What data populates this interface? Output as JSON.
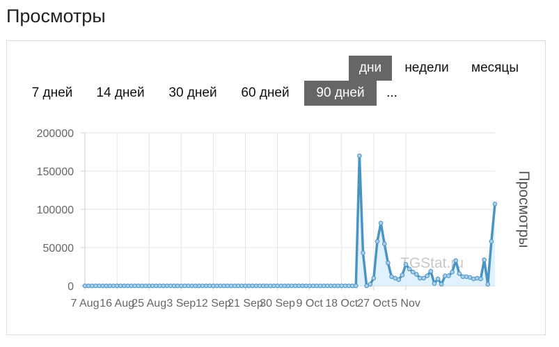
{
  "page": {
    "title": "Просмотры"
  },
  "granularity": [
    {
      "label": "дни",
      "active": true
    },
    {
      "label": "недели",
      "active": false
    },
    {
      "label": "месяцы",
      "active": false
    }
  ],
  "ranges": [
    {
      "label": "7 дней",
      "active": false
    },
    {
      "label": "14 дней",
      "active": false
    },
    {
      "label": "30 дней",
      "active": false
    },
    {
      "label": "60 дней",
      "active": false
    },
    {
      "label": "90 дней",
      "active": true
    },
    {
      "label": "...",
      "active": false
    }
  ],
  "watermark": "TGStat.ru",
  "colors": {
    "line": "#4a94c4",
    "fill": "#dbeeff",
    "point_fill": "#a9cfe8",
    "active_button": "#666666"
  },
  "chart_data": {
    "type": "area",
    "title": "",
    "xlabel": "",
    "ylabel": "Просмотры",
    "ylim": [
      0,
      200000
    ],
    "yticks": [
      0,
      50000,
      100000,
      150000,
      200000
    ],
    "xticks": [
      "7 Aug",
      "16 Aug",
      "25 Aug",
      "3 Sep",
      "12 Sep",
      "21 Sep",
      "30 Sep",
      "9 Oct",
      "18 Oct",
      "27 Oct",
      "5 Nov"
    ],
    "x_start": "7 Aug",
    "x_end": "5 Nov",
    "grid": true,
    "legend": "none",
    "values": [
      0,
      0,
      0,
      0,
      0,
      0,
      0,
      0,
      0,
      0,
      0,
      0,
      0,
      0,
      0,
      0,
      0,
      0,
      0,
      0,
      0,
      0,
      0,
      0,
      0,
      0,
      0,
      0,
      0,
      0,
      0,
      0,
      0,
      0,
      0,
      0,
      0,
      0,
      0,
      0,
      0,
      0,
      0,
      0,
      0,
      0,
      0,
      0,
      0,
      0,
      0,
      0,
      0,
      0,
      0,
      0,
      0,
      0,
      0,
      0,
      0,
      0,
      0,
      0,
      0,
      0,
      0,
      0,
      0,
      0,
      0,
      0,
      0,
      0,
      0,
      0,
      0,
      170000,
      43000,
      0,
      2000,
      10000,
      58000,
      82000,
      55000,
      30000,
      12000,
      10000,
      8000,
      14000,
      28000,
      22000,
      18000,
      15000,
      10000,
      10000,
      13000,
      19000,
      3000,
      9000,
      2000,
      13000,
      13000,
      18000,
      33000,
      16000,
      12000,
      12000,
      11000,
      9000,
      10000,
      9000,
      34000,
      2000,
      58000,
      107000
    ]
  }
}
